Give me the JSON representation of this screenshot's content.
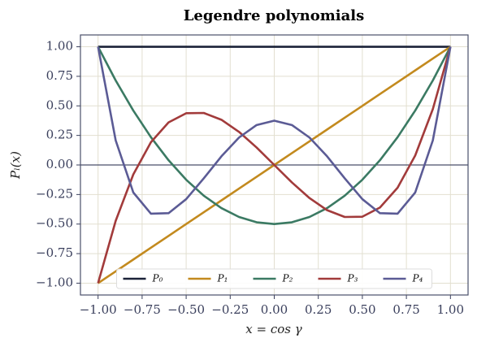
{
  "chart_data": {
    "type": "line",
    "title": "Legendre polynomials",
    "x_label": "x = cos γ",
    "y_label": "Pₗ(x)",
    "x": [
      -1,
      -0.9,
      -0.8,
      -0.7,
      -0.6,
      -0.5,
      -0.4,
      -0.3,
      -0.2,
      -0.1,
      0,
      0.1,
      0.2,
      0.3,
      0.4,
      0.5,
      0.6,
      0.7,
      0.8,
      0.9,
      1
    ],
    "series": [
      {
        "name": "P₀",
        "color": "#1b2238",
        "values": [
          1,
          1,
          1,
          1,
          1,
          1,
          1,
          1,
          1,
          1,
          1,
          1,
          1,
          1,
          1,
          1,
          1,
          1,
          1,
          1,
          1
        ]
      },
      {
        "name": "P₁",
        "color": "#c38a1e",
        "values": [
          -1,
          -0.9,
          -0.8,
          -0.7,
          -0.6,
          -0.5,
          -0.4,
          -0.3,
          -0.2,
          -0.1,
          0,
          0.1,
          0.2,
          0.3,
          0.4,
          0.5,
          0.6,
          0.7,
          0.8,
          0.9,
          1
        ]
      },
      {
        "name": "P₂",
        "color": "#3b7a63",
        "values": [
          1,
          0.715,
          0.46,
          0.235,
          0.04,
          -0.125,
          -0.26,
          -0.365,
          -0.44,
          -0.485,
          -0.5,
          -0.485,
          -0.44,
          -0.365,
          -0.26,
          -0.125,
          0.04,
          0.235,
          0.46,
          0.715,
          1
        ]
      },
      {
        "name": "P₃",
        "color": "#a23b3b",
        "values": [
          -1,
          -0.4725,
          -0.08,
          0.1925,
          0.36,
          0.4375,
          0.44,
          0.3825,
          0.28,
          0.1475,
          0,
          -0.1475,
          -0.28,
          -0.3825,
          -0.44,
          -0.4375,
          -0.36,
          -0.1925,
          0.08,
          0.4725,
          1
        ]
      },
      {
        "name": "P₄",
        "color": "#5b5b95",
        "values": [
          1,
          0.2079,
          -0.233,
          -0.4121,
          -0.408,
          -0.2891,
          -0.113,
          0.0729,
          0.232,
          0.3379,
          0.375,
          0.3379,
          0.232,
          0.0729,
          -0.113,
          -0.2891,
          -0.408,
          -0.4121,
          -0.233,
          0.2079,
          1
        ]
      }
    ],
    "xlim": [
      -1.1,
      1.1
    ],
    "ylim": [
      -1.1,
      1.1
    ],
    "xticks": [
      {
        "value": -1,
        "label": "−1.00"
      },
      {
        "value": -0.75,
        "label": "−0.75"
      },
      {
        "value": -0.5,
        "label": "−0.50"
      },
      {
        "value": -0.25,
        "label": "−0.25"
      },
      {
        "value": 0,
        "label": "0.00"
      },
      {
        "value": 0.25,
        "label": "0.25"
      },
      {
        "value": 0.5,
        "label": "0.50"
      },
      {
        "value": 0.75,
        "label": "0.75"
      },
      {
        "value": 1,
        "label": "1.00"
      }
    ],
    "yticks": [
      {
        "value": -1,
        "label": "−1.00"
      },
      {
        "value": -0.75,
        "label": "−0.75"
      },
      {
        "value": -0.5,
        "label": "−0.50"
      },
      {
        "value": -0.25,
        "label": "−0.25"
      },
      {
        "value": 0,
        "label": "0.00"
      },
      {
        "value": 0.25,
        "label": "0.25"
      },
      {
        "value": 0.5,
        "label": "0.50"
      },
      {
        "value": 0.75,
        "label": "0.75"
      },
      {
        "value": 1,
        "label": "1.00"
      }
    ],
    "grid": true,
    "zero_line": true,
    "legend": "lower center"
  }
}
